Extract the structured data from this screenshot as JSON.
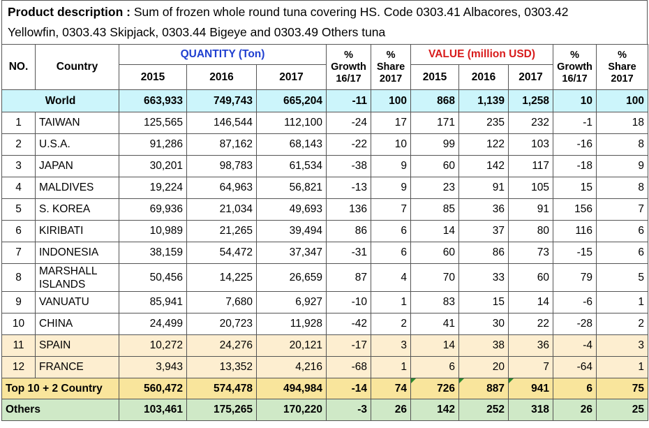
{
  "description": {
    "label": "Product description :",
    "text_line1": " Sum of frozen whole round tuna covering HS. Code 0303.41 Albacores, 0303.42",
    "text_line2": "Yellowfin, 0303.43 Skipjack, 0303.44 Bigeye and 0303.49 Others tuna"
  },
  "headers": {
    "no": "NO.",
    "country": "Country",
    "quantity": "QUANTITY (Ton)",
    "value": "VALUE (million USD)",
    "pct": "%",
    "growth": "Growth",
    "growth_period": "16/17",
    "share": "Share",
    "share_year": "2017",
    "years": [
      "2015",
      "2016",
      "2017"
    ]
  },
  "world": {
    "label": "World",
    "q2015": "663,933",
    "q2016": "749,743",
    "q2017": "665,204",
    "qgrowth": "-11",
    "qshare": "100",
    "v2015": "868",
    "v2016": "1,139",
    "v2017": "1,258",
    "vgrowth": "10",
    "vshare": "100"
  },
  "rows": [
    {
      "no": "1",
      "country": "TAIWAN",
      "q2015": "125,565",
      "q2016": "146,544",
      "q2017": "112,100",
      "qgrowth": "-24",
      "qshare": "17",
      "v2015": "171",
      "v2016": "235",
      "v2017": "232",
      "vgrowth": "-1",
      "vshare": "18"
    },
    {
      "no": "2",
      "country": "U.S.A.",
      "q2015": "91,286",
      "q2016": "87,162",
      "q2017": "68,143",
      "qgrowth": "-22",
      "qshare": "10",
      "v2015": "99",
      "v2016": "122",
      "v2017": "103",
      "vgrowth": "-16",
      "vshare": "8"
    },
    {
      "no": "3",
      "country": "JAPAN",
      "q2015": "30,201",
      "q2016": "98,783",
      "q2017": "61,534",
      "qgrowth": "-38",
      "qshare": "9",
      "v2015": "60",
      "v2016": "142",
      "v2017": "117",
      "vgrowth": "-18",
      "vshare": "9"
    },
    {
      "no": "4",
      "country": "MALDIVES",
      "q2015": "19,224",
      "q2016": "64,963",
      "q2017": "56,821",
      "qgrowth": "-13",
      "qshare": "9",
      "v2015": "23",
      "v2016": "91",
      "v2017": "105",
      "vgrowth": "15",
      "vshare": "8"
    },
    {
      "no": "5",
      "country": "S. KOREA",
      "q2015": "69,936",
      "q2016": "21,034",
      "q2017": "49,693",
      "qgrowth": "136",
      "qshare": "7",
      "v2015": "85",
      "v2016": "36",
      "v2017": "91",
      "vgrowth": "156",
      "vshare": "7"
    },
    {
      "no": "6",
      "country": "KIRIBATI",
      "q2015": "10,989",
      "q2016": "21,265",
      "q2017": "39,494",
      "qgrowth": "86",
      "qshare": "6",
      "v2015": "14",
      "v2016": "37",
      "v2017": "80",
      "vgrowth": "116",
      "vshare": "6"
    },
    {
      "no": "7",
      "country": "INDONESIA",
      "q2015": "38,159",
      "q2016": "54,472",
      "q2017": "37,347",
      "qgrowth": "-31",
      "qshare": "6",
      "v2015": "60",
      "v2016": "86",
      "v2017": "73",
      "vgrowth": "-15",
      "vshare": "6"
    },
    {
      "no": "8",
      "country": "MARSHALL ISLANDS",
      "q2015": "50,456",
      "q2016": "14,225",
      "q2017": "26,659",
      "qgrowth": "87",
      "qshare": "4",
      "v2015": "70",
      "v2016": "33",
      "v2017": "60",
      "vgrowth": "79",
      "vshare": "5"
    },
    {
      "no": "9",
      "country": "VANUATU",
      "q2015": "85,941",
      "q2016": "7,680",
      "q2017": "6,927",
      "qgrowth": "-10",
      "qshare": "1",
      "v2015": "83",
      "v2016": "15",
      "v2017": "14",
      "vgrowth": "-6",
      "vshare": "1"
    },
    {
      "no": "10",
      "country": "CHINA",
      "q2015": "24,499",
      "q2016": "20,723",
      "q2017": "11,928",
      "qgrowth": "-42",
      "qshare": "2",
      "v2015": "41",
      "v2016": "30",
      "v2017": "22",
      "vgrowth": "-28",
      "vshare": "2"
    },
    {
      "no": "11",
      "country": "SPAIN",
      "q2015": "10,272",
      "q2016": "24,276",
      "q2017": "20,121",
      "qgrowth": "-17",
      "qshare": "3",
      "v2015": "14",
      "v2016": "38",
      "v2017": "36",
      "vgrowth": "-4",
      "vshare": "3"
    },
    {
      "no": "12",
      "country": "FRANCE",
      "q2015": "3,943",
      "q2016": "13,352",
      "q2017": "4,216",
      "qgrowth": "-68",
      "qshare": "1",
      "v2015": "6",
      "v2016": "20",
      "v2017": "7",
      "vgrowth": "-64",
      "vshare": "1"
    }
  ],
  "top": {
    "label": "Top 10 + 2 Country",
    "q2015": "560,472",
    "q2016": "574,478",
    "q2017": "494,984",
    "qgrowth": "-14",
    "qshare": "74",
    "v2015": "726",
    "v2016": "887",
    "v2017": "941",
    "vgrowth": "6",
    "vshare": "75"
  },
  "others": {
    "label": "Others",
    "q2015": "103,461",
    "q2016": "175,265",
    "q2017": "170,220",
    "qgrowth": "-3",
    "qshare": "26",
    "v2015": "142",
    "v2016": "252",
    "v2017": "318",
    "vgrowth": "26",
    "vshare": "25"
  },
  "colors": {
    "quantity_header": "#1f3fd0",
    "value_header": "#d81b1b",
    "world_row": "#ccf5fb",
    "highlight_rows": "#fdeed0",
    "top_row": "#f9e59c",
    "others_row": "#cfe9c7",
    "error_marker": "#2e8b2e"
  }
}
